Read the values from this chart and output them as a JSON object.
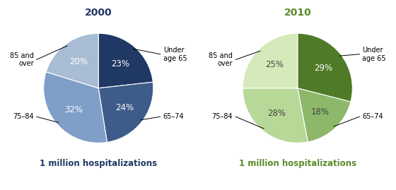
{
  "chart2000": {
    "title": "2000",
    "title_color": "#1F3864",
    "subtitle": "1 million hospitalizations",
    "subtitle_color": "#1F3864",
    "labels": [
      "Under\nage 65",
      "65–74",
      "75–84",
      "85 and\nover"
    ],
    "values": [
      23,
      24,
      32,
      20
    ],
    "pct_labels": [
      "23%",
      "24%",
      "32%",
      "20%"
    ],
    "colors": [
      "#1F3864",
      "#3D5C8A",
      "#7F9FC8",
      "#A8BDD4"
    ],
    "pct_label_colors": [
      "white",
      "white",
      "white",
      "white"
    ],
    "startangle": 90
  },
  "chart2010": {
    "title": "2010",
    "title_color": "#5A8A28",
    "subtitle": "1 million hospitalizations",
    "subtitle_color": "#5A8A28",
    "labels": [
      "Under\nage 65",
      "65–74",
      "75–84",
      "85 and\nover"
    ],
    "values": [
      29,
      18,
      28,
      25
    ],
    "pct_labels": [
      "29%",
      "18%",
      "28%",
      "25%"
    ],
    "colors": [
      "#4F7A28",
      "#8DB86A",
      "#B8D898",
      "#D5EABA"
    ],
    "pct_label_colors": [
      "white",
      "#444444",
      "#444444",
      "#444444"
    ],
    "startangle": 90
  },
  "figure_bg": "white",
  "label_fontsize": 7.0,
  "pct_fontsize": 8.5,
  "title_fontsize": 10,
  "subtitle_fontsize": 8.5
}
